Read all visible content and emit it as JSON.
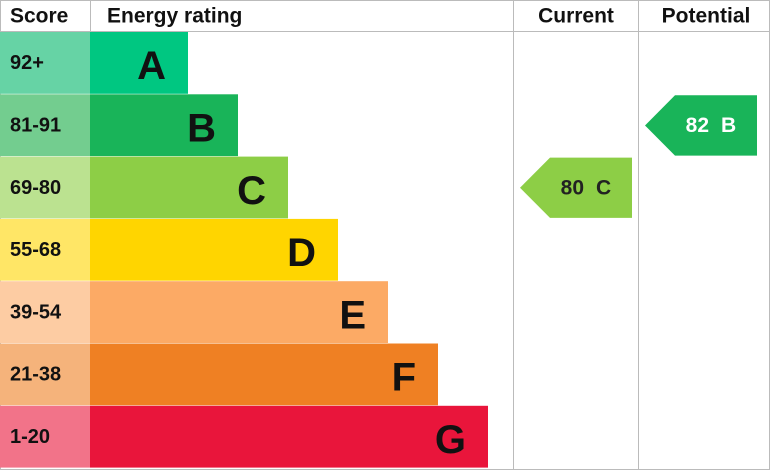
{
  "header": {
    "score": "Score",
    "rating": "Energy rating",
    "current": "Current",
    "potential": "Potential"
  },
  "bands": [
    {
      "score": "92+",
      "letter": "A",
      "color": "#00c781",
      "light": "#66d3a5"
    },
    {
      "score": "81-91",
      "letter": "B",
      "color": "#19b459",
      "light": "#73cd8f"
    },
    {
      "score": "69-80",
      "letter": "C",
      "color": "#8dce46",
      "light": "#bbe290"
    },
    {
      "score": "55-68",
      "letter": "D",
      "color": "#ffd500",
      "light": "#ffe666"
    },
    {
      "score": "39-54",
      "letter": "E",
      "color": "#fcaa65",
      "light": "#fdcca3"
    },
    {
      "score": "21-38",
      "letter": "F",
      "color": "#ef8023",
      "light": "#f5b37b"
    },
    {
      "score": "1-20",
      "letter": "G",
      "color": "#e9153b",
      "light": "#f27389"
    }
  ],
  "current": {
    "score": 80,
    "letter": "C"
  },
  "potential": {
    "score": 82,
    "letter": "B"
  }
}
